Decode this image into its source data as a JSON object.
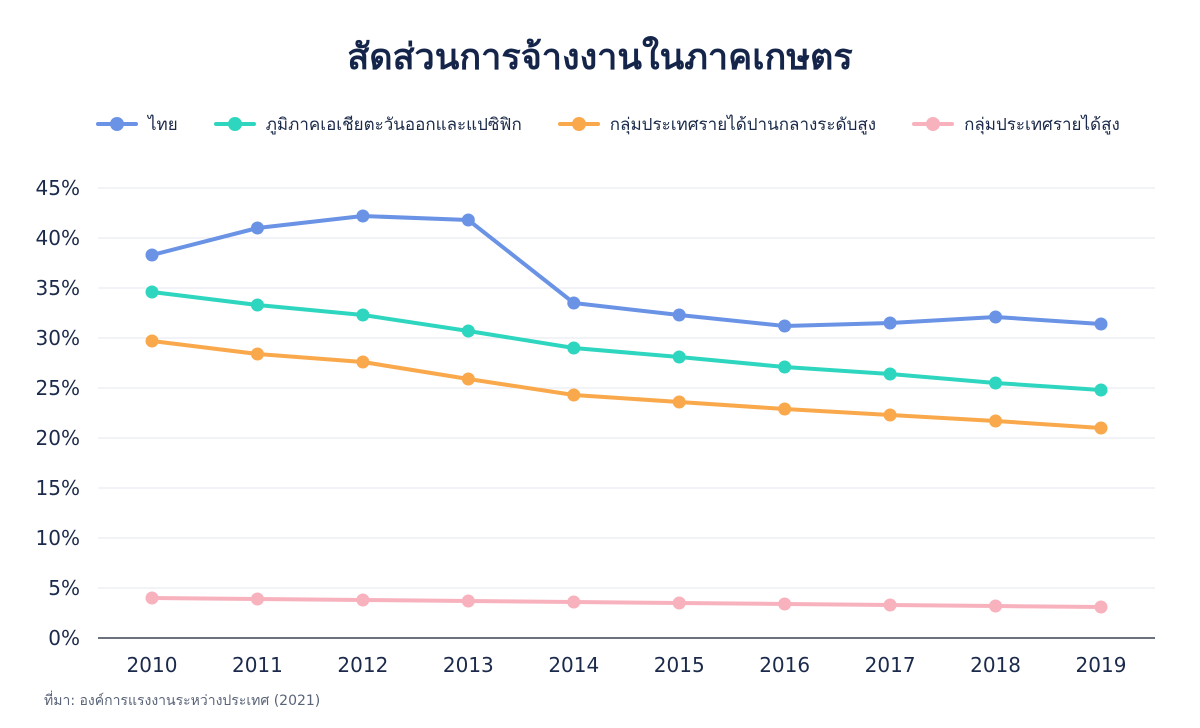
{
  "chart_data": {
    "type": "line",
    "title": "สัดส่วนการจ้างงานในภาคเกษตร",
    "xlabel": "",
    "ylabel": "",
    "x": [
      "2010",
      "2011",
      "2012",
      "2013",
      "2014",
      "2015",
      "2016",
      "2017",
      "2018",
      "2019"
    ],
    "y_ticks": [
      "0%",
      "5%",
      "10%",
      "15%",
      "20%",
      "25%",
      "30%",
      "35%",
      "40%",
      "45%"
    ],
    "ylim": [
      0,
      45
    ],
    "grid": true,
    "legend_position": "top",
    "series": [
      {
        "name": "ไทย",
        "color": "#6a93e6",
        "values": [
          38.3,
          41.0,
          42.2,
          41.8,
          33.5,
          32.3,
          31.2,
          31.5,
          32.1,
          31.4
        ]
      },
      {
        "name": "ภูมิภาคเอเชียตะวันออกและแปซิฟิก",
        "color": "#2fd6bf",
        "values": [
          34.6,
          33.3,
          32.3,
          30.7,
          29.0,
          28.1,
          27.1,
          26.4,
          25.5,
          24.8
        ]
      },
      {
        "name": "กลุ่มประเทศรายได้ปานกลางระดับสูง",
        "color": "#f9a94c",
        "values": [
          29.7,
          28.4,
          27.6,
          25.9,
          24.3,
          23.6,
          22.9,
          22.3,
          21.7,
          21.0
        ]
      },
      {
        "name": "กลุ่มประเทศรายได้สูง",
        "color": "#f7b2bd",
        "values": [
          4.0,
          3.9,
          3.8,
          3.7,
          3.6,
          3.5,
          3.4,
          3.3,
          3.2,
          3.1
        ]
      }
    ]
  },
  "source": "ที่มา: องค์การแรงงานระหว่างประเทศ (2021)"
}
